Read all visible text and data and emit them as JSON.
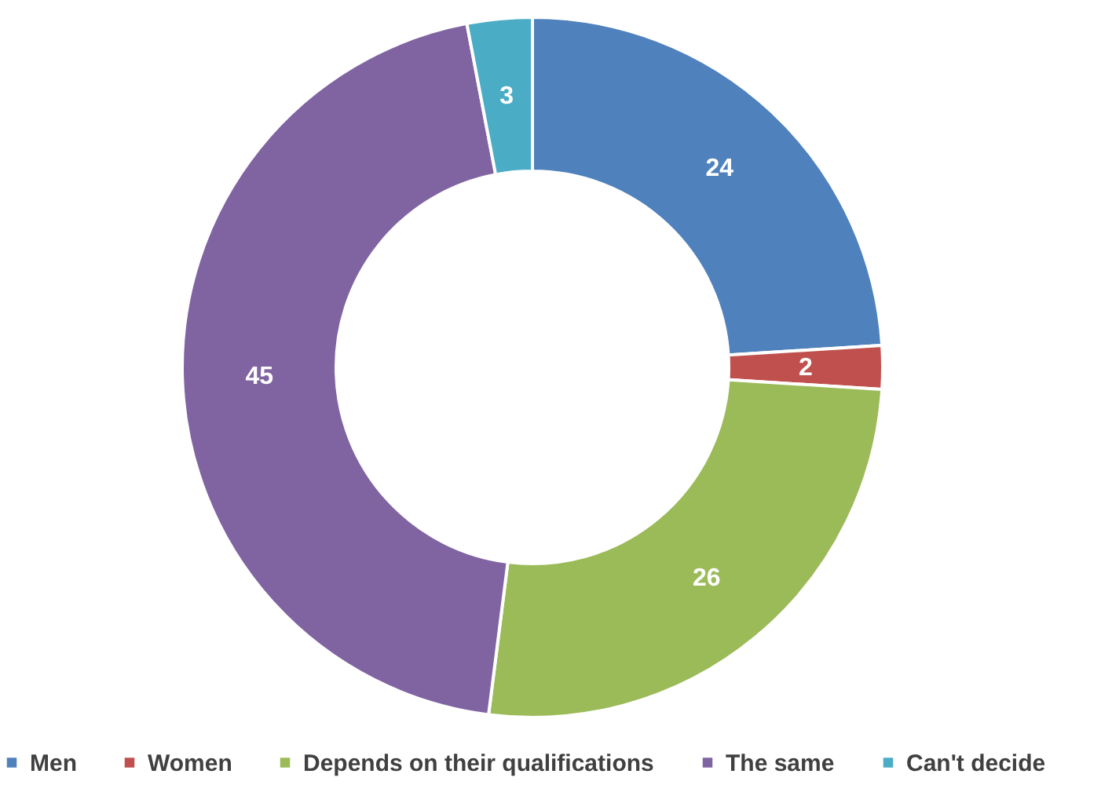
{
  "chart_data": {
    "type": "donut",
    "categories": [
      "Men",
      "Women",
      "Depends on their qualifications",
      "The same",
      "Can't decide"
    ],
    "values": [
      24,
      2,
      26,
      45,
      3
    ],
    "colors": [
      "#4f81bd",
      "#c0504d",
      "#9bbb59",
      "#8064a2",
      "#4bacc6"
    ],
    "data_labels": true,
    "legend": "bottom"
  }
}
